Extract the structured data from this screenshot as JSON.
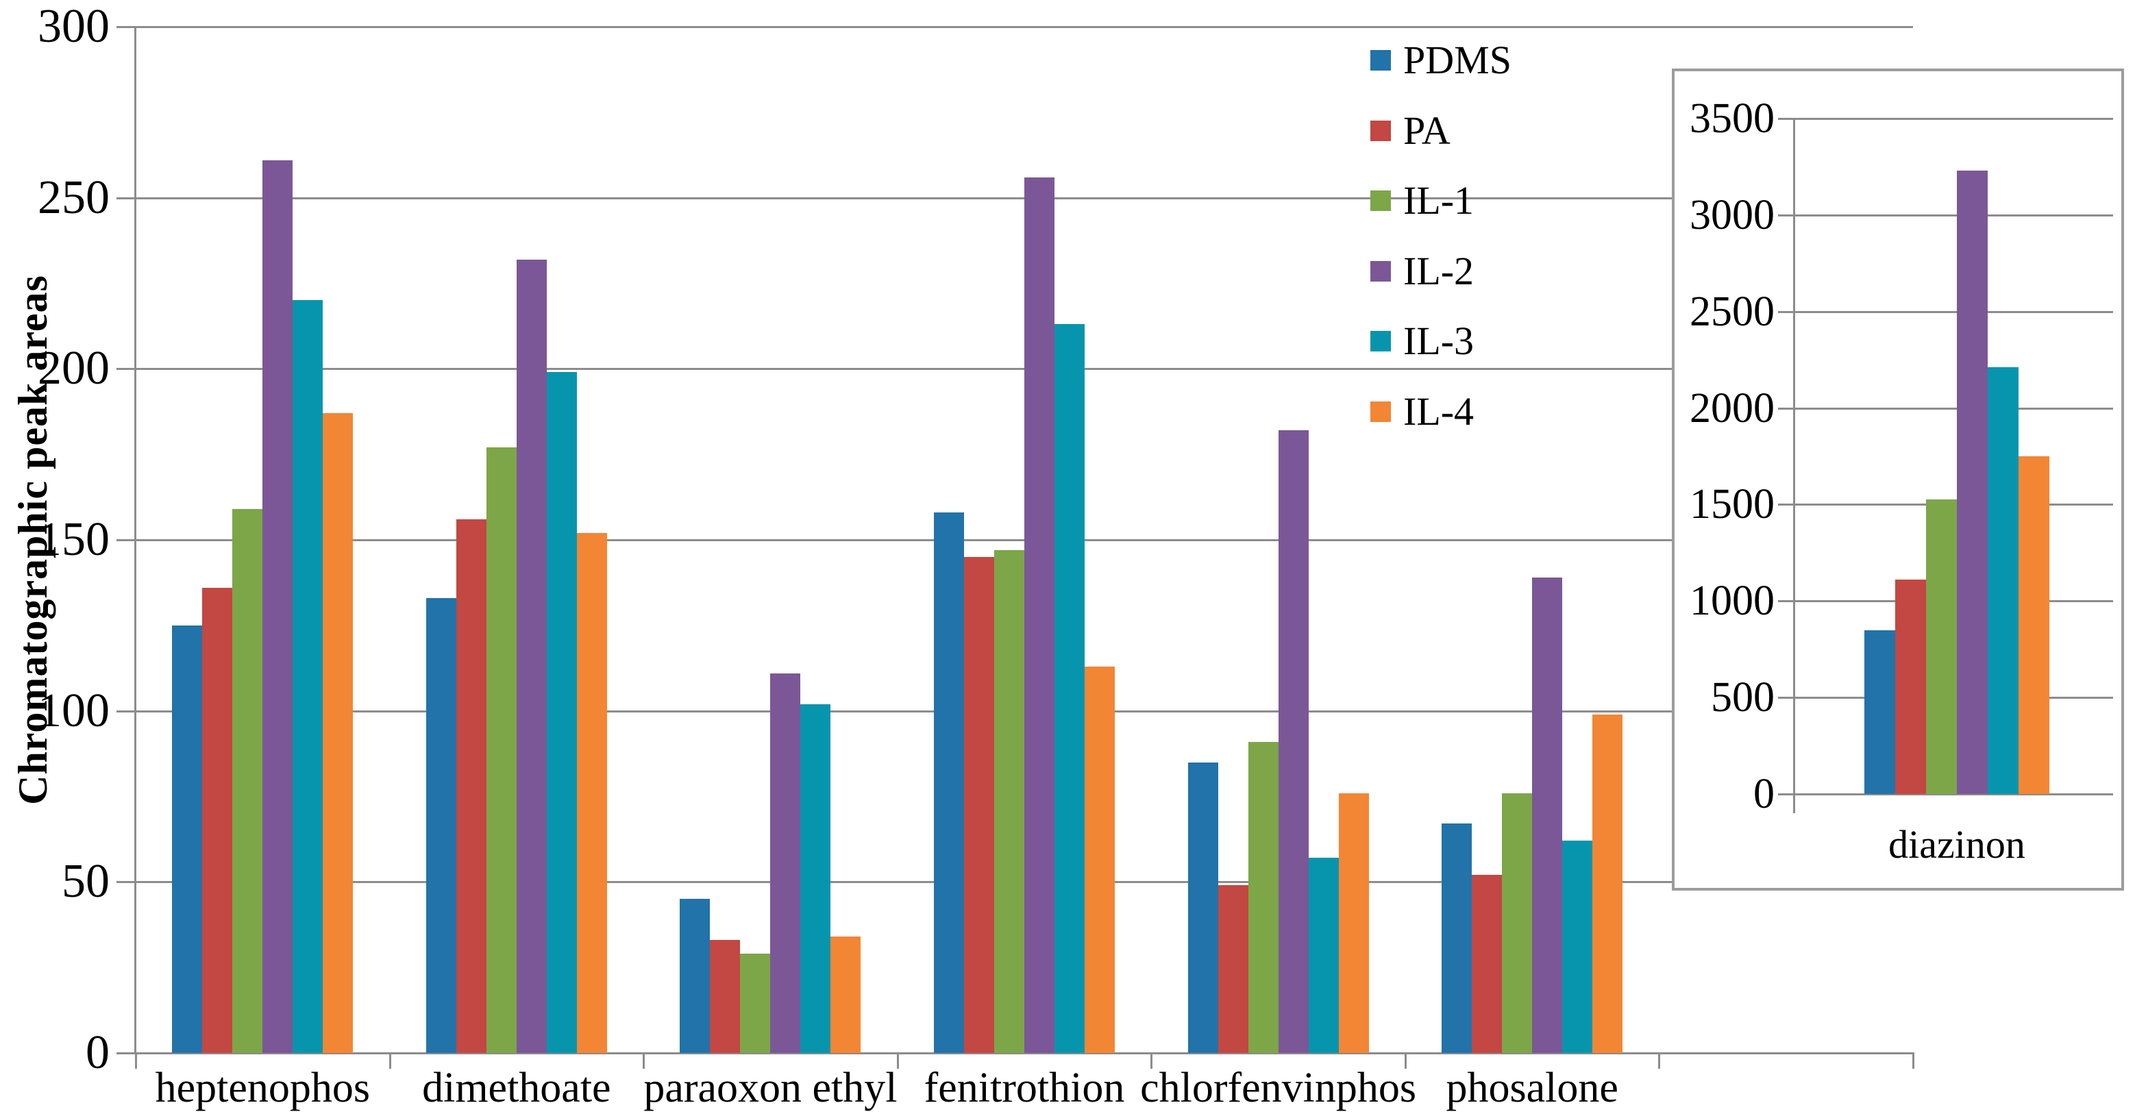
{
  "figure": {
    "y_axis_title": "Chromatographic peak areas"
  },
  "colors": {
    "grid": "#8c8c8c",
    "axis": "#8c8c8c",
    "inset_border": "#9c9c9c",
    "pdms": "#2173a9",
    "pa": "#c34742",
    "il1": "#7da648",
    "il2": "#7b5797",
    "il3": "#0795ae",
    "il4": "#f28634"
  },
  "legend": {
    "items": [
      {
        "label": "PDMS",
        "color": "#2173a9"
      },
      {
        "label": "PA",
        "color": "#c34742"
      },
      {
        "label": "IL-1",
        "color": "#7da648"
      },
      {
        "label": "IL-2",
        "color": "#7b5797"
      },
      {
        "label": "IL-3",
        "color": "#0795ae"
      },
      {
        "label": "IL-4",
        "color": "#f28634"
      }
    ]
  },
  "inset": {
    "category_label": "diazinon"
  },
  "chart_data": [
    {
      "type": "bar",
      "title": "",
      "xlabel": "",
      "ylabel": "Chromatographic peak areas",
      "ylim": [
        0,
        300
      ],
      "yticks": [
        0,
        50,
        100,
        150,
        200,
        250,
        300
      ],
      "grid": true,
      "legend_position": "top-right-inside",
      "categories": [
        "heptenophos",
        "dimethoate",
        "paraoxon ethyl",
        "fenitrothion",
        "chlorfenvinphos",
        "phosalone"
      ],
      "series": [
        {
          "name": "PDMS",
          "color": "#2173a9",
          "values": [
            125,
            133,
            45,
            158,
            85,
            67
          ]
        },
        {
          "name": "PA",
          "color": "#c34742",
          "values": [
            136,
            156,
            33,
            145,
            49,
            52
          ]
        },
        {
          "name": "IL-1",
          "color": "#7da648",
          "values": [
            159,
            177,
            29,
            147,
            91,
            76
          ]
        },
        {
          "name": "IL-2",
          "color": "#7b5797",
          "values": [
            261,
            232,
            111,
            256,
            182,
            139
          ]
        },
        {
          "name": "IL-3",
          "color": "#0795ae",
          "values": [
            220,
            199,
            102,
            213,
            57,
            62
          ]
        },
        {
          "name": "IL-4",
          "color": "#f28634",
          "values": [
            187,
            152,
            34,
            113,
            76,
            99
          ]
        }
      ]
    },
    {
      "type": "bar",
      "title": "",
      "xlabel": "",
      "ylabel": "",
      "ylim": [
        0,
        3500
      ],
      "yticks": [
        0,
        500,
        1000,
        1500,
        2000,
        2500,
        3000,
        3500
      ],
      "grid": true,
      "categories": [
        "diazinon"
      ],
      "series": [
        {
          "name": "PDMS",
          "color": "#2173a9",
          "values": [
            850
          ]
        },
        {
          "name": "PA",
          "color": "#c34742",
          "values": [
            1110
          ]
        },
        {
          "name": "IL-1",
          "color": "#7da648",
          "values": [
            1525
          ]
        },
        {
          "name": "IL-2",
          "color": "#7b5797",
          "values": [
            3230
          ]
        },
        {
          "name": "IL-3",
          "color": "#0795ae",
          "values": [
            2210
          ]
        },
        {
          "name": "IL-4",
          "color": "#f28634",
          "values": [
            1750
          ]
        }
      ]
    }
  ]
}
